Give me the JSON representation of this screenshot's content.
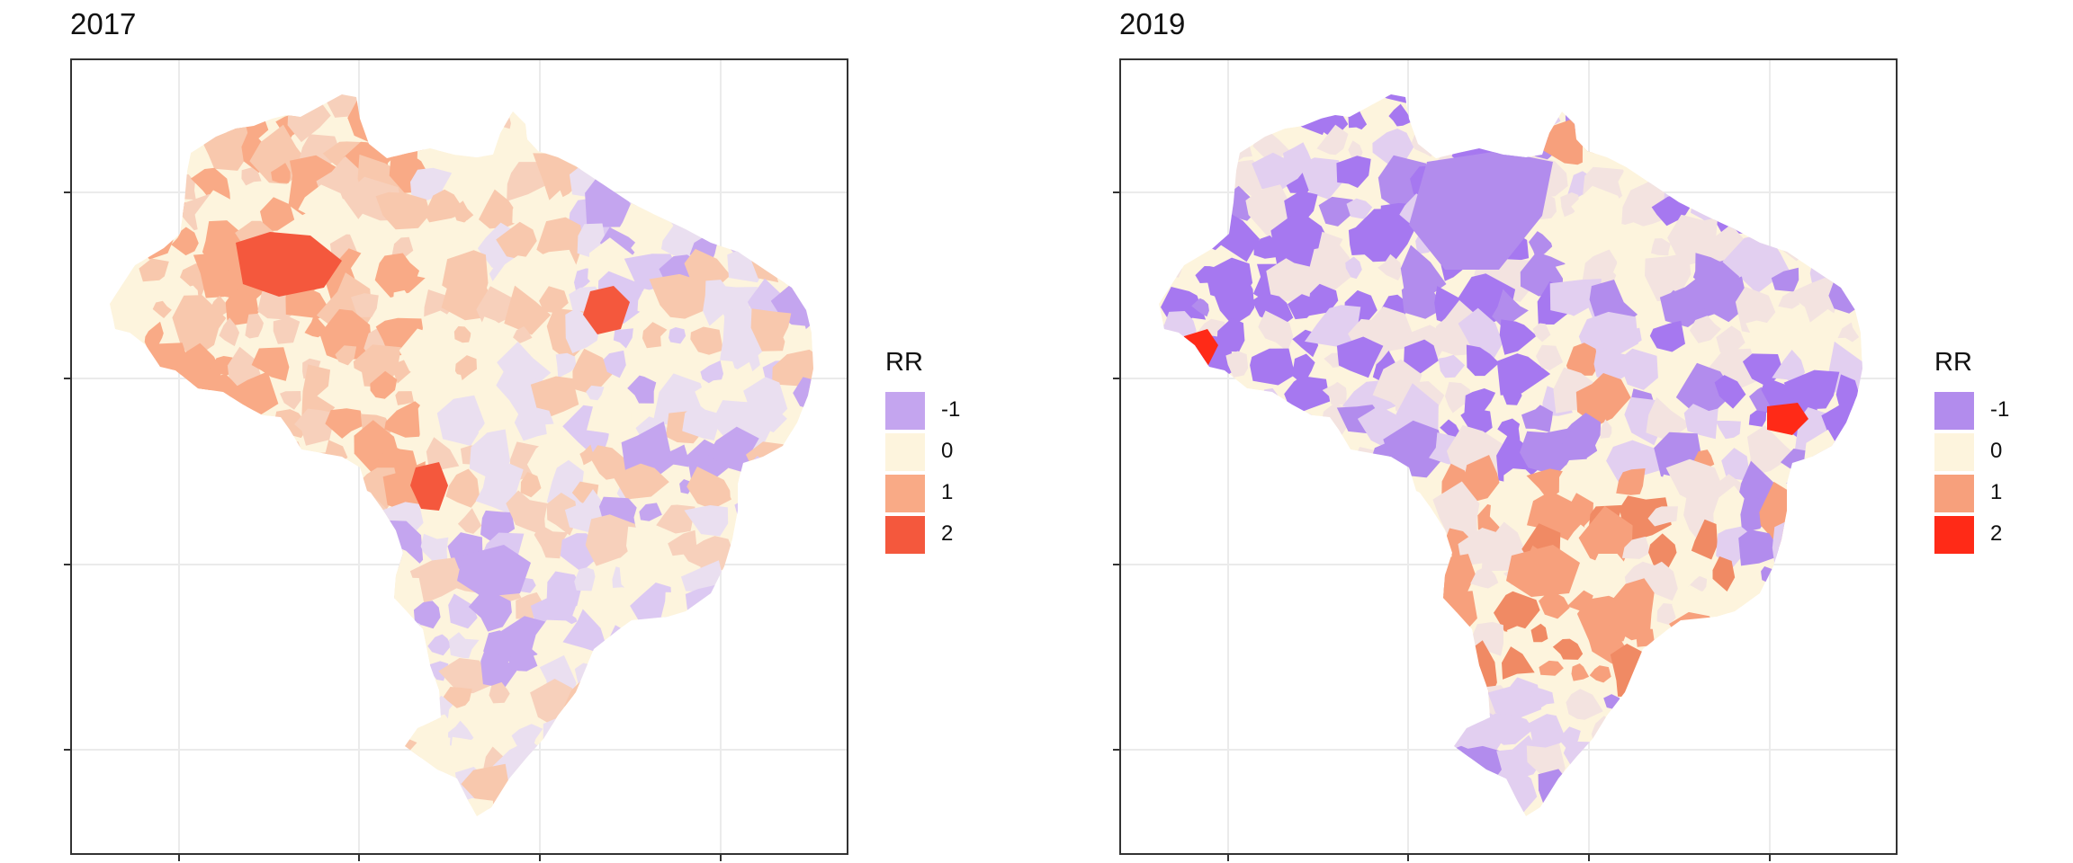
{
  "legend_title": "RR",
  "legend": [
    {
      "label": "-1",
      "value": -1
    },
    {
      "label": "0",
      "value": 0
    },
    {
      "label": "1",
      "value": 1
    },
    {
      "label": "2",
      "value": 2
    }
  ],
  "panels": [
    {
      "title": "2017",
      "palette": {
        "-1": "#c4a5ef",
        "0": "#fdf4dd",
        "1": "#f9aa86",
        "2": "#f4583d"
      },
      "accent": [
        "#f8c8ad",
        "#f7d0bb",
        "#eadff0",
        "#f9b999",
        "#dcc9f2"
      ],
      "hotspots": [
        {
          "region": "west-amazon",
          "rr": 2
        },
        {
          "region": "northeast-interior",
          "rr": 2
        },
        {
          "region": "center-west",
          "rr": 2
        },
        {
          "region": "south-east",
          "rr": -1
        }
      ]
    },
    {
      "title": "2019",
      "palette": {
        "-1": "#b28ced",
        "0": "#fdf4dd",
        "1": "#f7a07c",
        "2": "#ff2a17"
      },
      "accent": [
        "#a678f0",
        "#5c3cf5",
        "#e2cff0",
        "#f3e3e0",
        "#f08a64"
      ],
      "hotspots": [
        {
          "region": "far-west",
          "rr": 2
        },
        {
          "region": "north",
          "rr": -1
        },
        {
          "region": "northeast-coast",
          "rr": 2
        },
        {
          "region": "south-east",
          "rr": 1
        }
      ]
    }
  ]
}
